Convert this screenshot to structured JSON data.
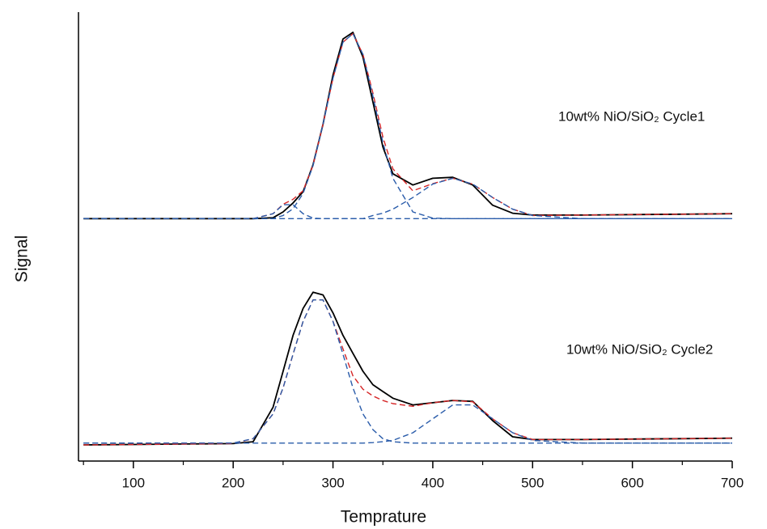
{
  "chart_data": {
    "type": "line",
    "x_label": "Temprature",
    "y_label": "Signal",
    "annotations": [
      "10wt% NiO/SiO₂ Cycle1",
      "10wt% NiO/SiO₂ Cycle2"
    ],
    "x": [
      50,
      100,
      150,
      200,
      220,
      240,
      250,
      260,
      270,
      280,
      290,
      300,
      310,
      320,
      330,
      340,
      350,
      360,
      380,
      400,
      420,
      440,
      460,
      480,
      500,
      550,
      600,
      650,
      700
    ],
    "xlim": [
      45,
      700
    ],
    "xticks": [
      100,
      200,
      300,
      400,
      500,
      600,
      700
    ],
    "xminorticks": [
      50,
      150,
      250,
      350,
      450,
      550,
      650
    ],
    "ylim": [
      0,
      100
    ],
    "series": [
      {
        "color": "#000000",
        "dash": false,
        "values": [
          54,
          54,
          54,
          54,
          54,
          54.2,
          55.5,
          57.5,
          60,
          66,
          75,
          86,
          94,
          95.5,
          90,
          80,
          70,
          64,
          61.5,
          63,
          63.2,
          61.5,
          57,
          55.2,
          54.8,
          54.8,
          54.9,
          55,
          55.1
        ]
      },
      {
        "color": "#d62728",
        "dash": true,
        "values": [
          54,
          54,
          54,
          54,
          54,
          55.1,
          57.2,
          58.3,
          60.2,
          65.9,
          75,
          85.3,
          93.3,
          95.2,
          90.6,
          82,
          72.2,
          65.1,
          60.2,
          61.8,
          63,
          61.7,
          58.7,
          56.1,
          54.7,
          54.8,
          54.9,
          55,
          55.1
        ]
      },
      {
        "color": "#2a5caa",
        "dash": true,
        "values": [
          54,
          54,
          54,
          54,
          54,
          54,
          54.7,
          56.2,
          59.6,
          65.8,
          75,
          85.3,
          93.3,
          95.2,
          90.6,
          81.3,
          71,
          63,
          55.5,
          54.1,
          54,
          54,
          54,
          54,
          54,
          54,
          54,
          54,
          54
        ]
      },
      {
        "color": "#2a5caa",
        "dash": true,
        "values": [
          54,
          54,
          54,
          54,
          54,
          55.1,
          57.1,
          57.1,
          55.1,
          54.1,
          54,
          54,
          54,
          54,
          54,
          54,
          54,
          54,
          54,
          54,
          54,
          54,
          54,
          54,
          54,
          54,
          54,
          54,
          54
        ]
      },
      {
        "color": "#2a5caa",
        "dash": true,
        "values": [
          54,
          54,
          54,
          54,
          54,
          54,
          54,
          54,
          54,
          54,
          54,
          54,
          54,
          54,
          54,
          54.7,
          55.2,
          56.1,
          58.7,
          61.7,
          63,
          61.7,
          58.7,
          56.1,
          54.7,
          54,
          54,
          54,
          54
        ]
      },
      {
        "color": "#000000",
        "dash": false,
        "values": [
          3.6,
          3.7,
          3.8,
          3.9,
          4.3,
          12,
          20,
          28,
          34,
          37.6,
          37,
          33,
          28,
          24,
          20,
          17,
          15.5,
          14,
          12.5,
          13,
          13.5,
          13.3,
          9,
          5.4,
          4.8,
          4.8,
          4.9,
          5,
          5.1
        ]
      },
      {
        "color": "#d62728",
        "dash": true,
        "values": [
          3.6,
          3.7,
          3.8,
          3.9,
          5,
          10.5,
          16.3,
          23.8,
          31.1,
          35.9,
          35.9,
          31.1,
          25,
          19,
          16,
          14.5,
          13.5,
          12.8,
          12.2,
          13,
          13.5,
          13.2,
          9.4,
          6.3,
          4.8,
          4.8,
          4.9,
          5,
          5.1
        ]
      },
      {
        "color": "#2a5caa",
        "dash": true,
        "values": [
          4,
          4,
          4,
          4,
          5,
          10.5,
          16.3,
          23.8,
          31.1,
          35.9,
          35.9,
          31.1,
          23.8,
          16.3,
          10.5,
          7,
          5,
          4.3,
          4,
          4,
          4,
          4,
          4,
          4,
          4,
          4,
          4,
          4,
          4
        ]
      },
      {
        "color": "#2a5caa",
        "dash": true,
        "values": [
          4,
          4,
          4,
          4,
          4,
          4,
          4,
          4,
          4,
          4,
          4,
          4,
          4,
          4,
          4,
          4.1,
          4.3,
          4.6,
          6.3,
          9.4,
          12.5,
          12.5,
          9.4,
          6.3,
          4.6,
          4,
          4,
          4,
          4
        ]
      }
    ]
  }
}
